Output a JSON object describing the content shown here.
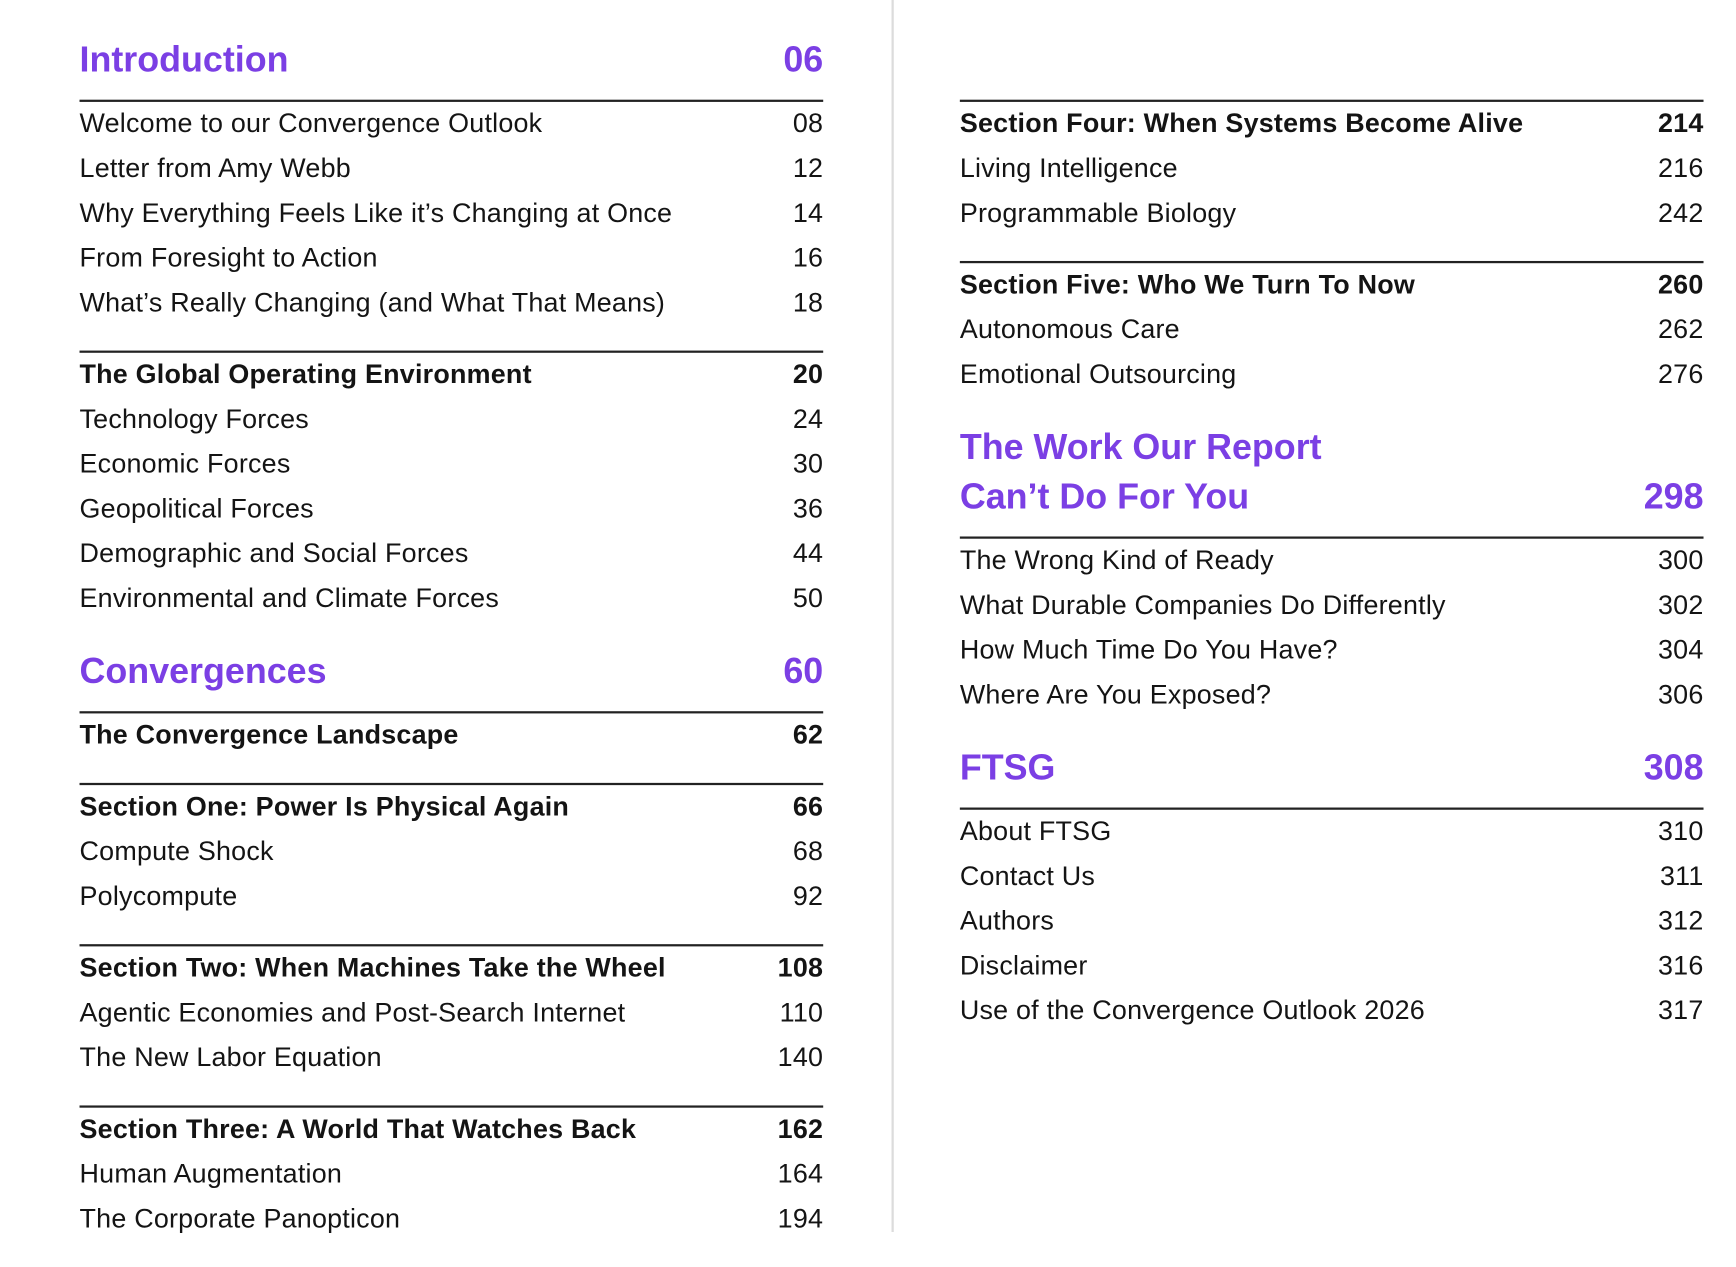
{
  "columns": [
    {
      "sections": [
        {
          "title": [
            "Introduction"
          ],
          "page": "06",
          "groups": [
            {
              "items": [
                {
                  "label": "Welcome to our Convergence Outlook",
                  "page": "08"
                },
                {
                  "label": "Letter from Amy Webb",
                  "page": "12"
                },
                {
                  "label": "Why Everything Feels Like it’s Changing at Once",
                  "page": "14"
                },
                {
                  "label": "From Foresight to Action",
                  "page": "16"
                },
                {
                  "label": "What’s Really Changing (and What That Means)",
                  "page": "18"
                }
              ]
            },
            {
              "heading": {
                "label": "The Global Operating Environment",
                "page": "20"
              },
              "items": [
                {
                  "label": "Technology Forces",
                  "page": "24"
                },
                {
                  "label": "Economic Forces",
                  "page": "30"
                },
                {
                  "label": "Geopolitical Forces",
                  "page": "36"
                },
                {
                  "label": "Demographic and Social Forces",
                  "page": "44"
                },
                {
                  "label": "Environmental and Climate Forces",
                  "page": "50"
                }
              ]
            }
          ]
        },
        {
          "title": [
            "Convergences"
          ],
          "page": "60",
          "groups": [
            {
              "heading": {
                "label": "The Convergence Landscape",
                "page": "62"
              },
              "items": []
            },
            {
              "heading": {
                "label": "Section One: Power Is Physical Again",
                "page": "66"
              },
              "items": [
                {
                  "label": "Compute Shock",
                  "page": "68"
                },
                {
                  "label": "Polycompute",
                  "page": "92"
                }
              ]
            },
            {
              "heading": {
                "label": "Section Two: When Machines Take the Wheel",
                "page": "108"
              },
              "items": [
                {
                  "label": "Agentic Economies and Post-Search Internet",
                  "page": "110"
                },
                {
                  "label": "The New Labor Equation",
                  "page": "140"
                }
              ]
            },
            {
              "heading": {
                "label": "Section Three: A World That Watches Back",
                "page": "162"
              },
              "items": [
                {
                  "label": "Human Augmentation",
                  "page": "164"
                },
                {
                  "label": "The Corporate Panopticon",
                  "page": "194"
                }
              ]
            }
          ]
        }
      ]
    },
    {
      "sections": [
        {
          "groups": [
            {
              "heading": {
                "label": "Section Four: When Systems Become Alive",
                "page": "214"
              },
              "items": [
                {
                  "label": "Living Intelligence",
                  "page": "216"
                },
                {
                  "label": "Programmable Biology",
                  "page": "242"
                }
              ]
            },
            {
              "heading": {
                "label": "Section Five: Who We Turn To Now",
                "page": "260"
              },
              "items": [
                {
                  "label": "Autonomous Care",
                  "page": "262"
                },
                {
                  "label": "Emotional Outsourcing",
                  "page": "276"
                }
              ]
            }
          ]
        },
        {
          "title": [
            "The Work Our Report",
            "Can’t Do For You"
          ],
          "page": "298",
          "groups": [
            {
              "items": [
                {
                  "label": "The Wrong Kind of Ready",
                  "page": "300"
                },
                {
                  "label": "What Durable Companies Do Differently",
                  "page": "302"
                },
                {
                  "label": "How Much Time Do You Have?",
                  "page": "304"
                },
                {
                  "label": "Where Are You Exposed?",
                  "page": "306"
                }
              ]
            }
          ]
        },
        {
          "title": [
            "FTSG"
          ],
          "page": "308",
          "groups": [
            {
              "items": [
                {
                  "label": "About FTSG",
                  "page": "310"
                },
                {
                  "label": "Contact Us",
                  "page": "311"
                },
                {
                  "label": "Authors",
                  "page": "312"
                },
                {
                  "label": "Disclaimer",
                  "page": "316"
                },
                {
                  "label": "Use of the Convergence Outlook 2026",
                  "page": "317"
                }
              ]
            }
          ]
        }
      ]
    }
  ]
}
